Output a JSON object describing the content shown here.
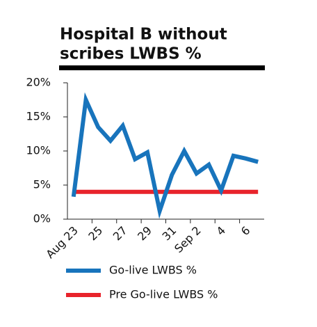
{
  "chart_data": {
    "type": "line",
    "title": [
      "Hospital B without",
      "scribes LWBS %"
    ],
    "categories": [
      "Aug 23",
      null,
      "25",
      null,
      "27",
      null,
      "29",
      null,
      "31",
      null,
      "Sep 2",
      null,
      "4",
      null,
      "6",
      null
    ],
    "series": [
      {
        "name": "Go-live LWBS %",
        "color": "#1874bc",
        "values": [
          3.3,
          17.5,
          13.5,
          11.5,
          13.7,
          8.8,
          9.8,
          1.2,
          6.5,
          10,
          6.7,
          8,
          4.2,
          9.3,
          8.9,
          8.4
        ]
      },
      {
        "name": "Pre Go-live LWBS %",
        "color": "#e8232b",
        "values": [
          4,
          4,
          4,
          4,
          4,
          4,
          4,
          4,
          4,
          4,
          4,
          4,
          4,
          4,
          4,
          4
        ]
      }
    ],
    "ylim": [
      0,
      20
    ],
    "yticks": [
      {
        "value": 0,
        "label": "0%"
      },
      {
        "value": 5,
        "label": "5%"
      },
      {
        "value": 10,
        "label": "10%"
      },
      {
        "value": 15,
        "label": "15%"
      },
      {
        "value": 20,
        "label": "20%"
      }
    ],
    "grid": false
  }
}
